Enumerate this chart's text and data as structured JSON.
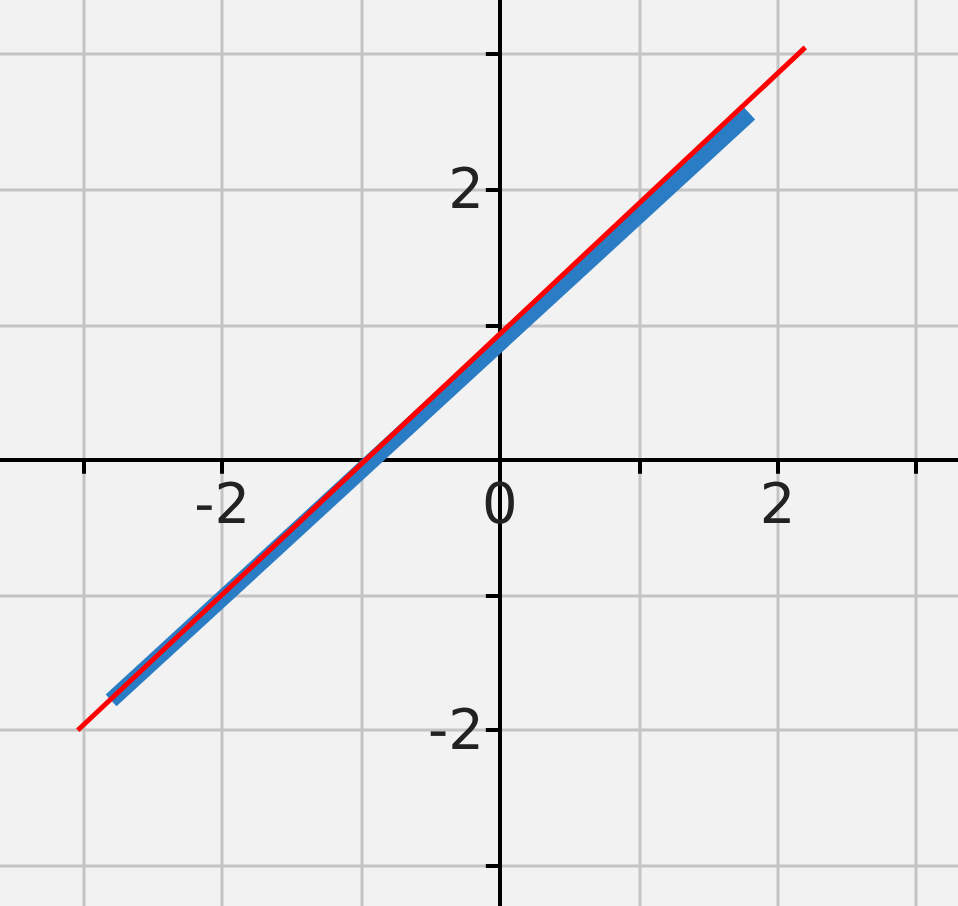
{
  "chart_data": {
    "type": "line",
    "marker": "none",
    "line_style": "solid",
    "grid": true,
    "xlim": [
      -3.6,
      3.3
    ],
    "ylim": [
      -3.3,
      3.4
    ],
    "xticks": [
      {
        "value": -3,
        "label": null
      },
      -2,
      {
        "value": -1,
        "label": null
      },
      0,
      {
        "value": 1,
        "label": null
      },
      2,
      {
        "value": 3,
        "label": null
      }
    ],
    "yticks": [
      {
        "value": -3,
        "label": null
      },
      -2,
      {
        "value": -1,
        "label": null
      },
      {
        "value": 0,
        "label": null
      },
      {
        "value": 1,
        "label": null
      },
      2,
      {
        "value": 3,
        "label": null
      }
    ],
    "series": [
      {
        "color": "#2a7cc4",
        "x": [
          -2.8,
          1.8
        ],
        "values": [
          -1.78,
          2.56
        ]
      },
      {
        "color": "#ff0000",
        "x": [
          -3.04,
          2.2
        ],
        "values": [
          -2,
          3.05
        ]
      }
    ]
  }
}
